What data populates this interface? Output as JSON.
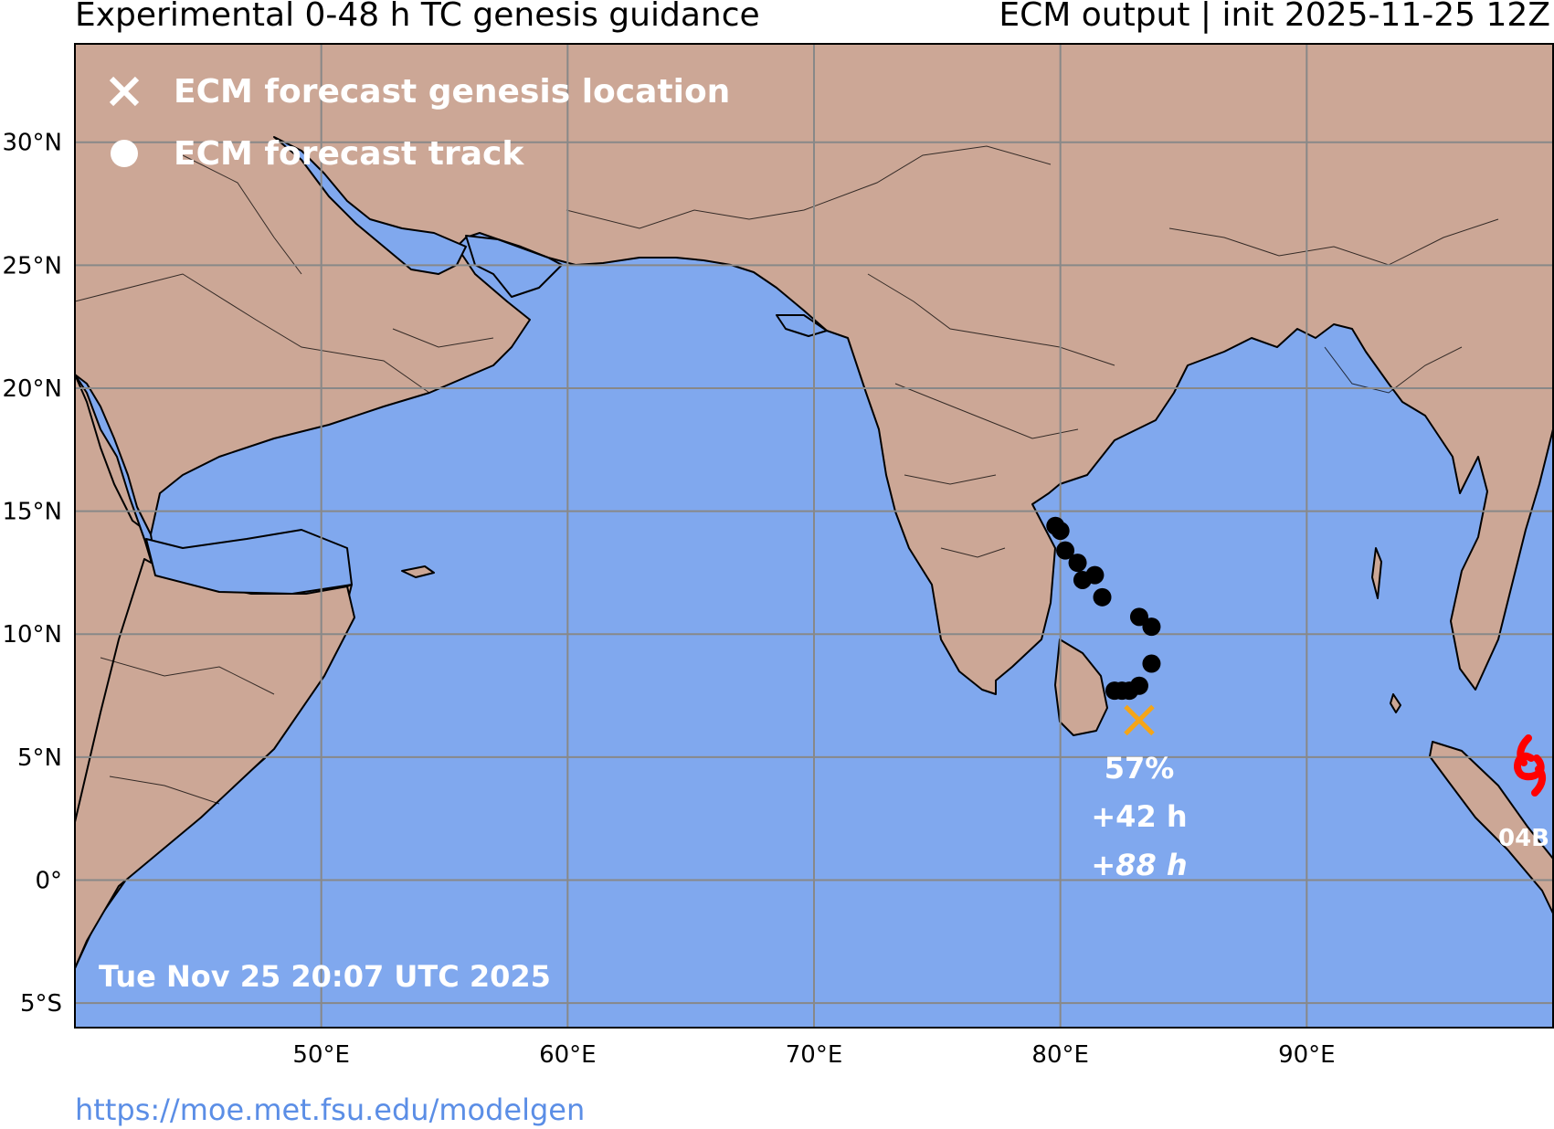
{
  "title_left": "Experimental 0-48 h TC genesis guidance",
  "title_right": "ECM output | init 2025-11-25 12Z",
  "legend": [
    {
      "symbol": "x-mark",
      "label": "ECM forecast genesis location"
    },
    {
      "symbol": "dot",
      "label": "ECM forecast track"
    }
  ],
  "timestamp": "Tue Nov 25 20:07 UTC 2025",
  "credit_url": "https://moe.met.fsu.edu/modelgen",
  "colors": {
    "ocean": "#80a8ee",
    "land": "#cca796",
    "grid": "#888888",
    "genesis_marker": "#f5a518",
    "track": "#000000",
    "storm_symbol": "#ff0000"
  },
  "map": {
    "lon_range": [
      40,
      100
    ],
    "lat_range": [
      -6,
      34
    ],
    "x_ticks": [
      {
        "value": 50,
        "label": "50°E"
      },
      {
        "value": 60,
        "label": "60°E"
      },
      {
        "value": 70,
        "label": "70°E"
      },
      {
        "value": 80,
        "label": "80°E"
      },
      {
        "value": 90,
        "label": "90°E"
      }
    ],
    "y_ticks": [
      {
        "value": 30,
        "label": "30°N"
      },
      {
        "value": 25,
        "label": "25°N"
      },
      {
        "value": 20,
        "label": "20°N"
      },
      {
        "value": 15,
        "label": "15°N"
      },
      {
        "value": 10,
        "label": "10°N"
      },
      {
        "value": 5,
        "label": "5°N"
      },
      {
        "value": 0,
        "label": "0°"
      },
      {
        "value": -5,
        "label": "5°S"
      }
    ]
  },
  "genesis": {
    "lon": 83.2,
    "lat": 6.5,
    "probability": "57%",
    "lead_time": "+42 h",
    "track_length": "+88 h"
  },
  "track": [
    [
      79.8,
      14.4
    ],
    [
      80.0,
      14.2
    ],
    [
      80.2,
      13.4
    ],
    [
      80.7,
      12.9
    ],
    [
      80.9,
      12.2
    ],
    [
      81.4,
      12.4
    ],
    [
      81.7,
      11.5
    ],
    [
      83.2,
      10.7
    ],
    [
      83.7,
      10.3
    ],
    [
      83.7,
      8.8
    ],
    [
      83.2,
      7.9
    ],
    [
      82.8,
      7.7
    ],
    [
      82.5,
      7.7
    ],
    [
      82.2,
      7.7
    ]
  ],
  "active_storm": {
    "name": "04B",
    "lon": 98.6,
    "lat": 4.6
  }
}
